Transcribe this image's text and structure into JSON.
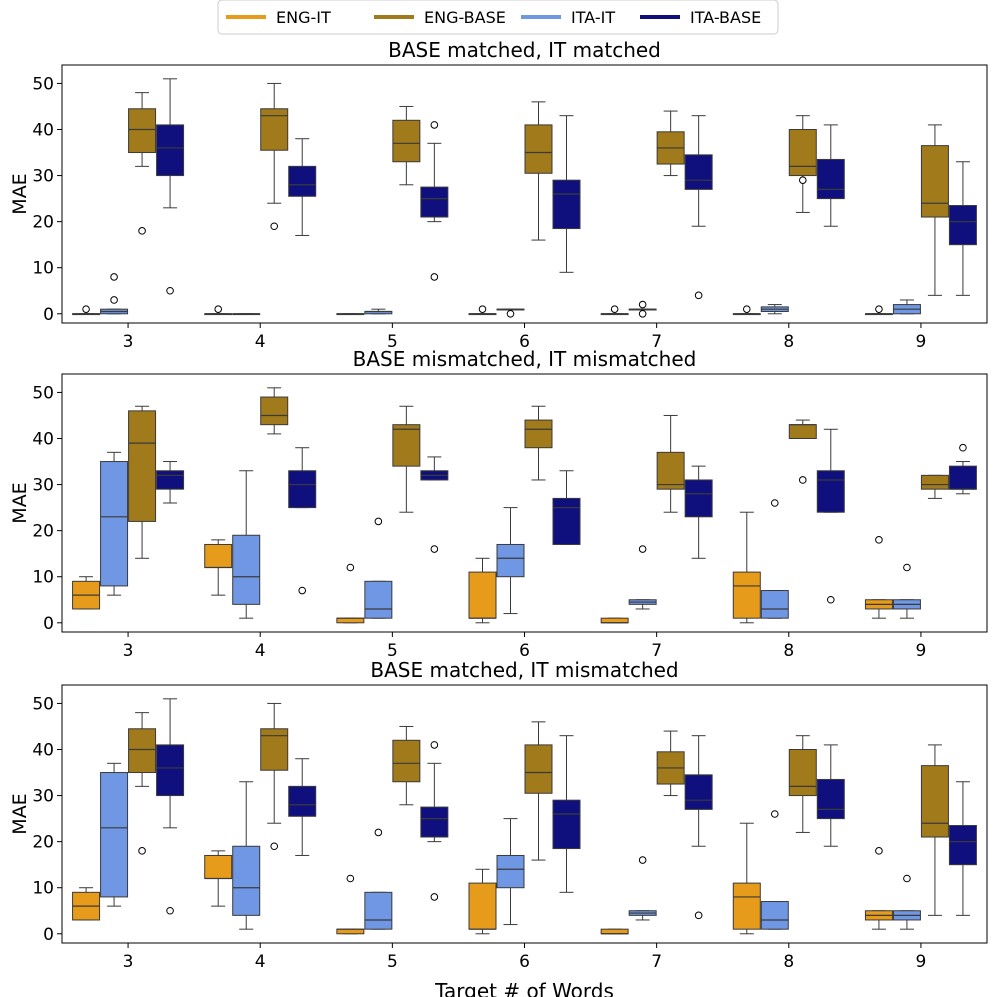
{
  "legend": {
    "items": [
      {
        "label": "ENG-IT",
        "color": "#E69B1A"
      },
      {
        "label": "ENG-BASE",
        "color": "#A07A1B"
      },
      {
        "label": "ITA-IT",
        "color": "#6F97E3"
      },
      {
        "label": "ITA-BASE",
        "color": "#0F107E"
      }
    ]
  },
  "chart_data": [
    {
      "type": "box",
      "title": "BASE matched, IT matched",
      "ylabel": "MAE",
      "xlabel": "",
      "categories": [
        "3",
        "4",
        "5",
        "6",
        "7",
        "8",
        "9"
      ],
      "ylim": [
        -2,
        54
      ],
      "yticks": [
        0,
        10,
        20,
        30,
        40,
        50
      ],
      "series": [
        {
          "name": "ENG-IT",
          "boxes": [
            {
              "min": 0,
              "q1": 0,
              "median": 0,
              "q3": 0,
              "max": 0,
              "outliers": [
                1
              ]
            },
            {
              "min": 0,
              "q1": 0,
              "median": 0,
              "q3": 0,
              "max": 0,
              "outliers": [
                1
              ]
            },
            {
              "min": 0,
              "q1": 0,
              "median": 0,
              "q3": 0,
              "max": 0,
              "outliers": []
            },
            {
              "min": 0,
              "q1": 0,
              "median": 0,
              "q3": 0,
              "max": 0,
              "outliers": [
                1
              ]
            },
            {
              "min": 0,
              "q1": 0,
              "median": 0,
              "q3": 0,
              "max": 0,
              "outliers": [
                1
              ]
            },
            {
              "min": 0,
              "q1": 0,
              "median": 0,
              "q3": 0,
              "max": 0,
              "outliers": [
                1
              ]
            },
            {
              "min": 0,
              "q1": 0,
              "median": 0,
              "q3": 0,
              "max": 0,
              "outliers": [
                1
              ]
            }
          ]
        },
        {
          "name": "ITA-IT",
          "boxes": [
            {
              "min": 0,
              "q1": 0,
              "median": 0.5,
              "q3": 1,
              "max": 1,
              "outliers": [
                3,
                8
              ]
            },
            {
              "min": 0,
              "q1": 0,
              "median": 0,
              "q3": 0,
              "max": 0,
              "outliers": []
            },
            {
              "min": 0,
              "q1": 0,
              "median": 0.5,
              "q3": 0.5,
              "max": 1,
              "outliers": []
            },
            {
              "min": 1,
              "q1": 1,
              "median": 1,
              "q3": 1,
              "max": 1,
              "outliers": [
                0
              ]
            },
            {
              "min": 1,
              "q1": 1,
              "median": 1,
              "q3": 1,
              "max": 1,
              "outliers": [
                0,
                2
              ]
            },
            {
              "min": 0,
              "q1": 0.5,
              "median": 1,
              "q3": 1.5,
              "max": 2,
              "outliers": []
            },
            {
              "min": 0,
              "q1": 0,
              "median": 1,
              "q3": 2,
              "max": 3,
              "outliers": []
            }
          ]
        },
        {
          "name": "ENG-BASE",
          "boxes": [
            {
              "min": 32,
              "q1": 35,
              "median": 40,
              "q3": 44.5,
              "max": 48,
              "outliers": [
                18
              ]
            },
            {
              "min": 24,
              "q1": 35.5,
              "median": 43,
              "q3": 44.5,
              "max": 50,
              "outliers": [
                19
              ]
            },
            {
              "min": 28,
              "q1": 33,
              "median": 37,
              "q3": 42,
              "max": 45,
              "outliers": []
            },
            {
              "min": 16,
              "q1": 30.5,
              "median": 35,
              "q3": 41,
              "max": 46,
              "outliers": []
            },
            {
              "min": 30,
              "q1": 32.5,
              "median": 36,
              "q3": 39.5,
              "max": 44,
              "outliers": []
            },
            {
              "min": 22,
              "q1": 30,
              "median": 32,
              "q3": 40,
              "max": 43,
              "outliers": [
                29
              ]
            },
            {
              "min": 4,
              "q1": 21,
              "median": 24,
              "q3": 36.5,
              "max": 41,
              "outliers": []
            }
          ]
        },
        {
          "name": "ITA-BASE",
          "boxes": [
            {
              "min": 23,
              "q1": 30,
              "median": 36,
              "q3": 41,
              "max": 51,
              "outliers": [
                5
              ]
            },
            {
              "min": 17,
              "q1": 25.5,
              "median": 28,
              "q3": 32,
              "max": 38,
              "outliers": []
            },
            {
              "min": 20,
              "q1": 21,
              "median": 25,
              "q3": 27.5,
              "max": 37,
              "outliers": [
                8,
                41
              ]
            },
            {
              "min": 9,
              "q1": 18.5,
              "median": 26,
              "q3": 29,
              "max": 43,
              "outliers": []
            },
            {
              "min": 19,
              "q1": 27,
              "median": 29,
              "q3": 34.5,
              "max": 43,
              "outliers": [
                4
              ]
            },
            {
              "min": 19,
              "q1": 25,
              "median": 27,
              "q3": 33.5,
              "max": 41,
              "outliers": []
            },
            {
              "min": 4,
              "q1": 15,
              "median": 20,
              "q3": 23.5,
              "max": 33,
              "outliers": []
            }
          ]
        }
      ]
    },
    {
      "type": "box",
      "title": "BASE mismatched, IT mismatched",
      "ylabel": "MAE",
      "xlabel": "",
      "categories": [
        "3",
        "4",
        "5",
        "6",
        "7",
        "8",
        "9"
      ],
      "ylim": [
        -2,
        54
      ],
      "yticks": [
        0,
        10,
        20,
        30,
        40,
        50
      ],
      "series": [
        {
          "name": "ENG-IT",
          "boxes": [
            {
              "min": 3,
              "q1": 3,
              "median": 6,
              "q3": 9,
              "max": 10,
              "outliers": []
            },
            {
              "min": 6,
              "q1": 12,
              "median": 12,
              "q3": 17,
              "max": 18,
              "outliers": []
            },
            {
              "min": 0,
              "q1": 0,
              "median": 1,
              "q3": 1,
              "max": 1,
              "outliers": [
                12
              ]
            },
            {
              "min": 0,
              "q1": 1,
              "median": 1,
              "q3": 11,
              "max": 14,
              "outliers": []
            },
            {
              "min": 0,
              "q1": 0,
              "median": 0,
              "q3": 1,
              "max": 1,
              "outliers": []
            },
            {
              "min": 0,
              "q1": 1,
              "median": 8,
              "q3": 11,
              "max": 24,
              "outliers": []
            },
            {
              "min": 1,
              "q1": 3,
              "median": 4,
              "q3": 5,
              "max": 5,
              "outliers": [
                18
              ]
            }
          ]
        },
        {
          "name": "ITA-IT",
          "boxes": [
            {
              "min": 6,
              "q1": 8,
              "median": 23,
              "q3": 35,
              "max": 37,
              "outliers": []
            },
            {
              "min": 1,
              "q1": 4,
              "median": 10,
              "q3": 19,
              "max": 33,
              "outliers": []
            },
            {
              "min": 1,
              "q1": 1,
              "median": 3,
              "q3": 9,
              "max": 9,
              "outliers": [
                22
              ]
            },
            {
              "min": 2,
              "q1": 10,
              "median": 14,
              "q3": 17,
              "max": 25,
              "outliers": []
            },
            {
              "min": 3,
              "q1": 4,
              "median": 4.5,
              "q3": 5,
              "max": 5,
              "outliers": [
                16
              ]
            },
            {
              "min": 1,
              "q1": 1,
              "median": 3,
              "q3": 7,
              "max": 7,
              "outliers": [
                26
              ]
            },
            {
              "min": 1,
              "q1": 3,
              "median": 4,
              "q3": 5,
              "max": 5,
              "outliers": [
                12
              ]
            }
          ]
        },
        {
          "name": "ENG-BASE",
          "boxes": [
            {
              "min": 14,
              "q1": 22,
              "median": 39,
              "q3": 46,
              "max": 47,
              "outliers": []
            },
            {
              "min": 41,
              "q1": 43,
              "median": 45,
              "q3": 49,
              "max": 51,
              "outliers": []
            },
            {
              "min": 24,
              "q1": 34,
              "median": 42,
              "q3": 43,
              "max": 47,
              "outliers": []
            },
            {
              "min": 31,
              "q1": 38,
              "median": 42,
              "q3": 44,
              "max": 47,
              "outliers": []
            },
            {
              "min": 24,
              "q1": 29,
              "median": 30,
              "q3": 37,
              "max": 45,
              "outliers": []
            },
            {
              "min": 40,
              "q1": 40,
              "median": 43,
              "q3": 43,
              "max": 44,
              "outliers": [
                31
              ]
            },
            {
              "min": 27,
              "q1": 29,
              "median": 30,
              "q3": 32,
              "max": 32,
              "outliers": []
            }
          ]
        },
        {
          "name": "ITA-BASE",
          "boxes": [
            {
              "min": 26,
              "q1": 29,
              "median": 32,
              "q3": 33,
              "max": 35,
              "outliers": []
            },
            {
              "min": 25,
              "q1": 25,
              "median": 30,
              "q3": 33,
              "max": 38,
              "outliers": [
                7
              ]
            },
            {
              "min": 31,
              "q1": 31,
              "median": 32,
              "q3": 33,
              "max": 36,
              "outliers": [
                16
              ]
            },
            {
              "min": 17,
              "q1": 17,
              "median": 25,
              "q3": 27,
              "max": 33,
              "outliers": []
            },
            {
              "min": 14,
              "q1": 23,
              "median": 28,
              "q3": 31,
              "max": 34,
              "outliers": []
            },
            {
              "min": 24,
              "q1": 24,
              "median": 31,
              "q3": 33,
              "max": 42,
              "outliers": [
                5
              ]
            },
            {
              "min": 28,
              "q1": 29,
              "median": 29,
              "q3": 34,
              "max": 35,
              "outliers": [
                38
              ]
            }
          ]
        }
      ]
    },
    {
      "type": "box",
      "title": "BASE matched, IT mismatched",
      "ylabel": "MAE",
      "xlabel": "Target # of Words",
      "categories": [
        "3",
        "4",
        "5",
        "6",
        "7",
        "8",
        "9"
      ],
      "ylim": [
        -2,
        54
      ],
      "yticks": [
        0,
        10,
        20,
        30,
        40,
        50
      ],
      "series": [
        {
          "name": "ENG-IT",
          "boxes": [
            {
              "min": 3,
              "q1": 3,
              "median": 6,
              "q3": 9,
              "max": 10,
              "outliers": []
            },
            {
              "min": 6,
              "q1": 12,
              "median": 12,
              "q3": 17,
              "max": 18,
              "outliers": []
            },
            {
              "min": 0,
              "q1": 0,
              "median": 1,
              "q3": 1,
              "max": 1,
              "outliers": [
                12
              ]
            },
            {
              "min": 0,
              "q1": 1,
              "median": 1,
              "q3": 11,
              "max": 14,
              "outliers": []
            },
            {
              "min": 0,
              "q1": 0,
              "median": 0,
              "q3": 1,
              "max": 1,
              "outliers": []
            },
            {
              "min": 0,
              "q1": 1,
              "median": 8,
              "q3": 11,
              "max": 24,
              "outliers": []
            },
            {
              "min": 1,
              "q1": 3,
              "median": 4,
              "q3": 5,
              "max": 5,
              "outliers": [
                18
              ]
            }
          ]
        },
        {
          "name": "ITA-IT",
          "boxes": [
            {
              "min": 6,
              "q1": 8,
              "median": 23,
              "q3": 35,
              "max": 37,
              "outliers": []
            },
            {
              "min": 1,
              "q1": 4,
              "median": 10,
              "q3": 19,
              "max": 33,
              "outliers": []
            },
            {
              "min": 1,
              "q1": 1,
              "median": 3,
              "q3": 9,
              "max": 9,
              "outliers": [
                22
              ]
            },
            {
              "min": 2,
              "q1": 10,
              "median": 14,
              "q3": 17,
              "max": 25,
              "outliers": []
            },
            {
              "min": 3,
              "q1": 4,
              "median": 4.5,
              "q3": 5,
              "max": 5,
              "outliers": [
                16
              ]
            },
            {
              "min": 1,
              "q1": 1,
              "median": 3,
              "q3": 7,
              "max": 7,
              "outliers": [
                26
              ]
            },
            {
              "min": 1,
              "q1": 3,
              "median": 4,
              "q3": 5,
              "max": 5,
              "outliers": [
                12
              ]
            }
          ]
        },
        {
          "name": "ENG-BASE",
          "boxes": [
            {
              "min": 32,
              "q1": 35,
              "median": 40,
              "q3": 44.5,
              "max": 48,
              "outliers": [
                18
              ]
            },
            {
              "min": 24,
              "q1": 35.5,
              "median": 43,
              "q3": 44.5,
              "max": 50,
              "outliers": [
                19
              ]
            },
            {
              "min": 28,
              "q1": 33,
              "median": 37,
              "q3": 42,
              "max": 45,
              "outliers": []
            },
            {
              "min": 16,
              "q1": 30.5,
              "median": 35,
              "q3": 41,
              "max": 46,
              "outliers": []
            },
            {
              "min": 30,
              "q1": 32.5,
              "median": 36,
              "q3": 39.5,
              "max": 44,
              "outliers": []
            },
            {
              "min": 22,
              "q1": 30,
              "median": 32,
              "q3": 40,
              "max": 43,
              "outliers": []
            },
            {
              "min": 4,
              "q1": 21,
              "median": 24,
              "q3": 36.5,
              "max": 41,
              "outliers": []
            }
          ]
        },
        {
          "name": "ITA-BASE",
          "boxes": [
            {
              "min": 23,
              "q1": 30,
              "median": 36,
              "q3": 41,
              "max": 51,
              "outliers": [
                5
              ]
            },
            {
              "min": 17,
              "q1": 25.5,
              "median": 28,
              "q3": 32,
              "max": 38,
              "outliers": []
            },
            {
              "min": 20,
              "q1": 21,
              "median": 25,
              "q3": 27.5,
              "max": 37,
              "outliers": [
                8,
                41
              ]
            },
            {
              "min": 9,
              "q1": 18.5,
              "median": 26,
              "q3": 29,
              "max": 43,
              "outliers": []
            },
            {
              "min": 19,
              "q1": 27,
              "median": 29,
              "q3": 34.5,
              "max": 43,
              "outliers": [
                4
              ]
            },
            {
              "min": 19,
              "q1": 25,
              "median": 27,
              "q3": 33.5,
              "max": 41,
              "outliers": []
            },
            {
              "min": 4,
              "q1": 15,
              "median": 20,
              "q3": 23.5,
              "max": 33,
              "outliers": []
            }
          ]
        }
      ]
    }
  ]
}
